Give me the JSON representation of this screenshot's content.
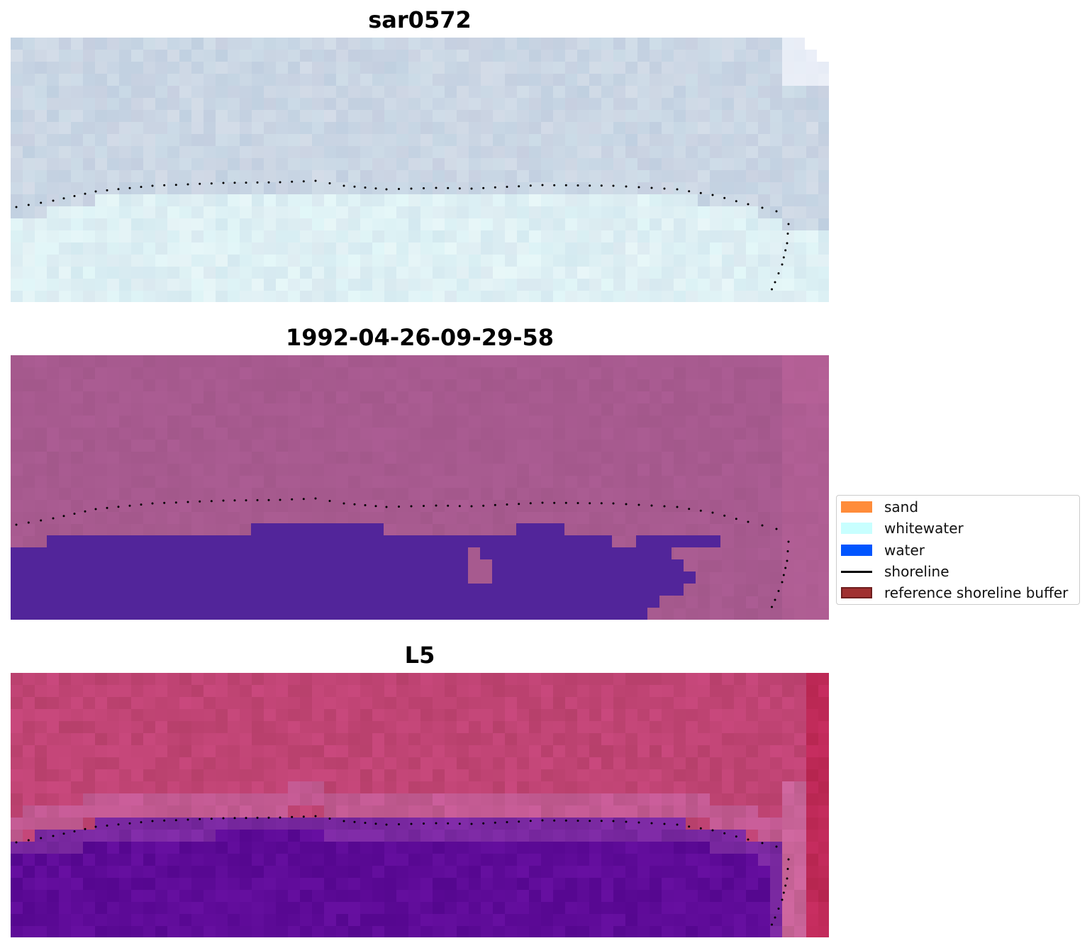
{
  "panels": [
    {
      "title": "sar0572",
      "palette": "sar"
    },
    {
      "title": "1992-04-26-09-29-58",
      "palette": "class"
    },
    {
      "title": "L5",
      "palette": "l5"
    }
  ],
  "legend": {
    "items": [
      {
        "label": "sand",
        "kind": "patch",
        "color": "#ff8c3a"
      },
      {
        "label": "whitewater",
        "kind": "patch",
        "color": "#c8ffff"
      },
      {
        "label": "water",
        "kind": "patch",
        "color": "#0055ff"
      },
      {
        "label": "shoreline",
        "kind": "line",
        "color": "#000000"
      },
      {
        "label": "reference shoreline buffer",
        "kind": "patch",
        "color": "#a03030"
      }
    ]
  },
  "colors": {
    "shoreline_dots": "#000000",
    "class_land": "#a75a8f",
    "class_water": "#52259a",
    "l5_land": "#c04474",
    "l5_water": "#5e0b98"
  }
}
